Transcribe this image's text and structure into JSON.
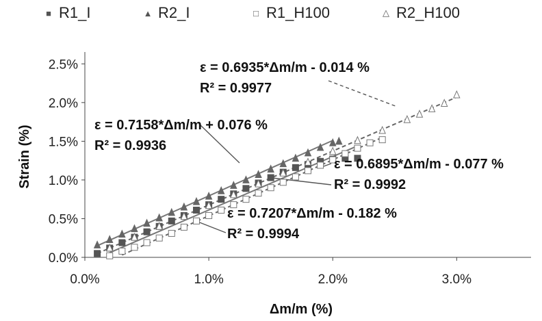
{
  "chart_data": {
    "type": "scatter",
    "xlabel": "Δm/m (%)",
    "ylabel": "Strain (%)",
    "xlim": [
      0,
      0.036
    ],
    "ylim": [
      0,
      0.026
    ],
    "x_ticks": [
      0,
      0.01,
      0.02,
      0.03
    ],
    "x_tick_labels": [
      "0.0%",
      "1.0%",
      "2.0%",
      "3.0%"
    ],
    "y_ticks": [
      0,
      0.005,
      0.01,
      0.015,
      0.02,
      0.025
    ],
    "y_tick_labels": [
      "0.0%",
      "0.5%",
      "1.0%",
      "1.5%",
      "2.0%",
      "2.5%"
    ],
    "grid": false,
    "legend_position": "top",
    "legend": [
      {
        "label": "R1_I",
        "marker": "filled-square",
        "color": "#555555"
      },
      {
        "label": "R2_I",
        "marker": "filled-triangle",
        "color": "#666666"
      },
      {
        "label": "R1_H100",
        "marker": "open-square",
        "color": "#666666"
      },
      {
        "label": "R2_H100",
        "marker": "open-triangle",
        "color": "#666666"
      }
    ],
    "series": [
      {
        "name": "R1_I",
        "marker": "filled-square",
        "x": [
          0.001,
          0.002,
          0.003,
          0.004,
          0.005,
          0.006,
          0.007,
          0.008,
          0.009,
          0.01,
          0.011,
          0.012,
          0.013,
          0.014,
          0.015,
          0.016,
          0.017,
          0.018,
          0.019,
          0.02,
          0.021,
          0.022
        ],
        "y": [
          0.0005,
          0.0012,
          0.0019,
          0.0026,
          0.0033,
          0.004,
          0.0047,
          0.0054,
          0.0061,
          0.0068,
          0.0075,
          0.0082,
          0.0089,
          0.0096,
          0.0103,
          0.011,
          0.0116,
          0.012,
          0.0124,
          0.0127,
          0.0128,
          0.0128
        ]
      },
      {
        "name": "R2_I",
        "marker": "filled-triangle",
        "x": [
          0.001,
          0.002,
          0.003,
          0.004,
          0.005,
          0.006,
          0.007,
          0.008,
          0.009,
          0.01,
          0.011,
          0.012,
          0.013,
          0.014,
          0.015,
          0.016,
          0.017,
          0.018,
          0.019,
          0.02,
          0.0205
        ],
        "y": [
          0.0016,
          0.0023,
          0.003,
          0.0037,
          0.0044,
          0.0051,
          0.0058,
          0.0065,
          0.0072,
          0.0079,
          0.0086,
          0.0093,
          0.01,
          0.0107,
          0.0114,
          0.0121,
          0.0128,
          0.0135,
          0.0142,
          0.0148,
          0.015
        ]
      },
      {
        "name": "R1_H100",
        "marker": "open-square",
        "x": [
          0.002,
          0.003,
          0.004,
          0.005,
          0.006,
          0.007,
          0.008,
          0.009,
          0.01,
          0.011,
          0.012,
          0.013,
          0.014,
          0.015,
          0.016,
          0.017,
          0.018,
          0.019,
          0.02,
          0.021,
          0.022,
          0.023,
          0.024
        ],
        "y": [
          0.0002,
          0.0008,
          0.0013,
          0.0019,
          0.0025,
          0.0031,
          0.0039,
          0.0047,
          0.0054,
          0.0061,
          0.0068,
          0.0075,
          0.0083,
          0.009,
          0.0097,
          0.0104,
          0.0112,
          0.0119,
          0.0126,
          0.0134,
          0.0141,
          0.0148,
          0.0152
        ]
      },
      {
        "name": "R2_H100",
        "marker": "open-triangle",
        "x": [
          0.002,
          0.004,
          0.006,
          0.008,
          0.01,
          0.012,
          0.014,
          0.016,
          0.018,
          0.02,
          0.022,
          0.024,
          0.026,
          0.027,
          0.028,
          0.029,
          0.03
        ],
        "y": [
          0.0012,
          0.0026,
          0.004,
          0.0053,
          0.0067,
          0.0081,
          0.0095,
          0.0109,
          0.0123,
          0.0137,
          0.0151,
          0.0164,
          0.0178,
          0.0185,
          0.0192,
          0.0199,
          0.021
        ]
      }
    ],
    "fit_lines": [
      {
        "series": "R2_I",
        "equation": "ε = 0.7158*Δm/m + 0.076 %",
        "r2": "R² = 0.9936",
        "x": [
          0.001,
          0.02
        ],
        "y": [
          0.0015,
          0.0151
        ],
        "style": "solid"
      },
      {
        "series": "R1_I",
        "equation": "ε = 0.6895*Δm/m - 0.077 %",
        "r2": "R² = 0.9992",
        "x": [
          0.002,
          0.022
        ],
        "y": [
          0.0006,
          0.0144
        ],
        "style": "solid"
      },
      {
        "series": "R2_H100",
        "equation": "ε = 0.6935*Δm/m - 0.014 %",
        "r2": "R² = 0.9977",
        "x": [
          0.001,
          0.03
        ],
        "y": [
          0.0005,
          0.0207
        ],
        "style": "dashed"
      },
      {
        "series": "R1_H100",
        "equation": "ε = 0.7207*Δm/m - 0.182 %",
        "r2": "R² = 0.9994",
        "x": [
          0.003,
          0.024
        ],
        "y": [
          0.0003,
          0.0155
        ],
        "style": "dashed"
      }
    ],
    "annotations": [
      {
        "text": "ε = 0.6935*Δm/m - 0.014 %"
      },
      {
        "text": "R² = 0.9977"
      },
      {
        "text": "ε = 0.7158*Δm/m + 0.076 %"
      },
      {
        "text": "R² = 0.9936"
      },
      {
        "text": "ε = 0.6895*Δm/m - 0.077 %"
      },
      {
        "text": "R² = 0.9992"
      },
      {
        "text": "ε = 0.7207*Δm/m - 0.182 %"
      },
      {
        "text": "R² = 0.9994"
      }
    ]
  }
}
